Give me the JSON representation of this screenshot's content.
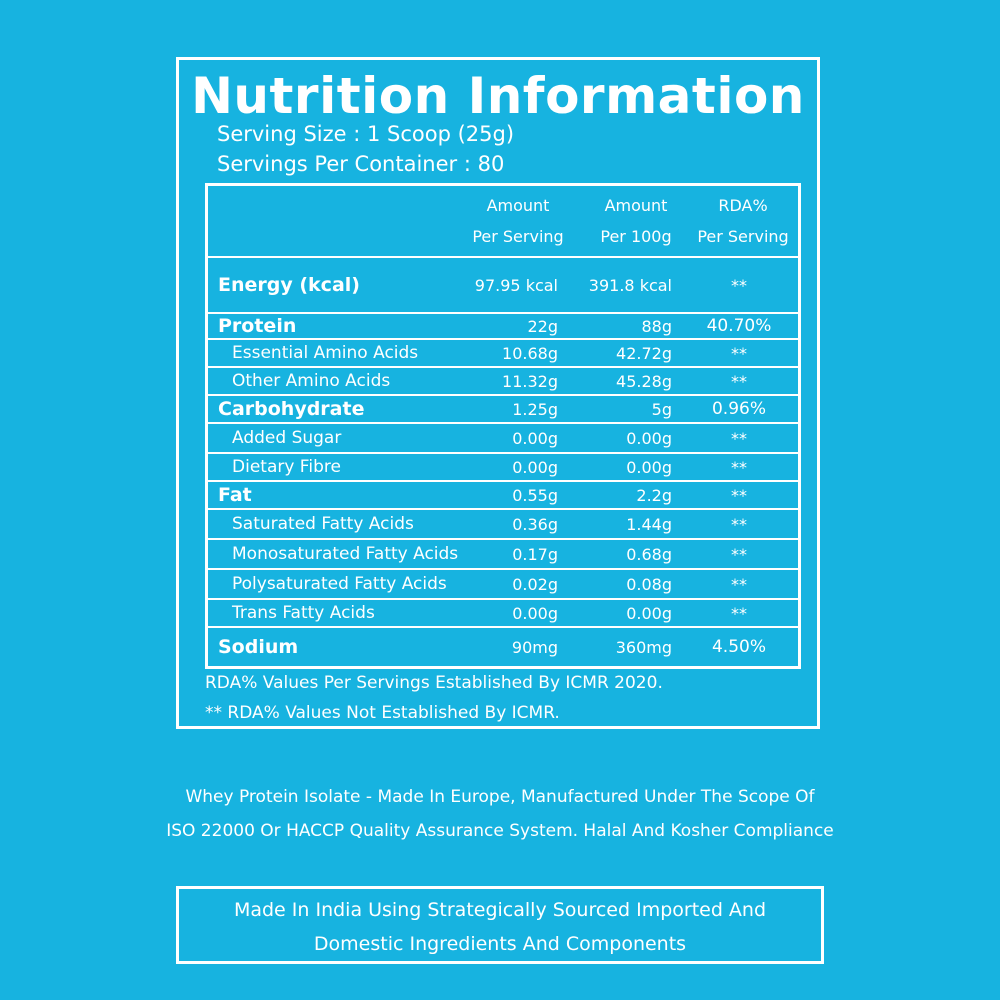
{
  "title": "Nutrition Information",
  "serving_size": "Serving Size : 1 Scoop (25g)",
  "servings_per_container": "Servings Per Container : 80",
  "table": {
    "headers": {
      "col1_line1": "Amount",
      "col1_line2": "Per Serving",
      "col2_line1": "Amount",
      "col2_line2": "Per 100g",
      "col3_line1": "RDA%",
      "col3_line2": "Per Serving"
    },
    "rows": [
      {
        "name": "Energy (kcal)",
        "per_serving": "97.95 kcal",
        "per_100g": "391.8 kcal",
        "rda": "**"
      },
      {
        "name": "Protein",
        "per_serving": "22g",
        "per_100g": "88g",
        "rda": "40.70%"
      },
      {
        "name": "Essential Amino Acids",
        "per_serving": "10.68g",
        "per_100g": "42.72g",
        "rda": "**"
      },
      {
        "name": "Other Amino Acids",
        "per_serving": "11.32g",
        "per_100g": "45.28g",
        "rda": "**"
      },
      {
        "name": "Carbohydrate",
        "per_serving": "1.25g",
        "per_100g": "5g",
        "rda": "0.96%"
      },
      {
        "name": "Added Sugar",
        "per_serving": "0.00g",
        "per_100g": "0.00g",
        "rda": "**"
      },
      {
        "name": "Dietary Fibre",
        "per_serving": "0.00g",
        "per_100g": "0.00g",
        "rda": "**"
      },
      {
        "name": "Fat",
        "per_serving": "0.55g",
        "per_100g": "2.2g",
        "rda": "**"
      },
      {
        "name": "Saturated Fatty Acids",
        "per_serving": "0.36g",
        "per_100g": "1.44g",
        "rda": "**"
      },
      {
        "name": "Monosaturated Fatty Acids",
        "per_serving": "0.17g",
        "per_100g": "0.68g",
        "rda": "**"
      },
      {
        "name": "Polysaturated Fatty Acids",
        "per_serving": "0.02g",
        "per_100g": "0.08g",
        "rda": "**"
      },
      {
        "name": "Trans Fatty Acids",
        "per_serving": "0.00g",
        "per_100g": "0.00g",
        "rda": "**"
      },
      {
        "name": "Sodium",
        "per_serving": "90mg",
        "per_100g": "360mg",
        "rda": "4.50%"
      }
    ]
  },
  "notes": {
    "rda_note": "RDA%  Values Per Servings Established By ICMR 2020.",
    "rda_not_established": "** RDA%  Values Not Established By ICMR."
  },
  "disclaimer": {
    "line1": "Whey Protein Isolate - Made In Europe, Manufactured Under The Scope Of",
    "line2": "ISO 22000 Or HACCP Quality Assurance System. Halal And Kosher Compliance"
  },
  "origin_box": {
    "line1": "Made In India Using Strategically Sourced Imported And",
    "line2": "Domestic Ingredients And Components"
  },
  "colors": {
    "background": "#17b3e0",
    "foreground": "#ffffff"
  }
}
